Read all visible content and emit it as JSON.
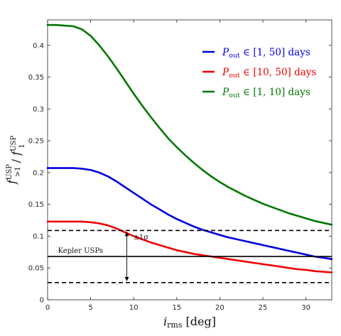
{
  "chart_data": {
    "type": "line",
    "xlabel_main": "i",
    "xlabel_sub": "rms",
    "xlabel_unit": " [deg]",
    "ylabel": "f>1USP / f1USP",
    "ylabel_parts": {
      "f1": "f",
      "sub1": ">1",
      "sup1": "USP",
      "slash": " / ",
      "f2": "f",
      "sub2": "1",
      "sup2": "USP"
    },
    "xlim": [
      0,
      33
    ],
    "ylim": [
      0,
      0.44
    ],
    "xticks": [
      0,
      5,
      10,
      15,
      20,
      25,
      30
    ],
    "xtick_labels": [
      "0",
      "5",
      "10",
      "15",
      "20",
      "25",
      "30"
    ],
    "yticks": [
      0,
      0.05,
      0.1,
      0.15,
      0.2,
      0.25,
      0.3,
      0.35,
      0.4
    ],
    "ytick_labels": [
      "0",
      "0.05",
      "0.1",
      "0.15",
      "0.2",
      "0.25",
      "0.3",
      "0.35",
      "0.4"
    ],
    "grid": false,
    "legend_position": "top-right",
    "x": [
      0,
      1,
      2,
      3,
      4,
      5,
      6,
      7,
      8,
      9,
      10,
      11,
      12,
      13,
      14,
      15,
      16,
      17,
      18,
      19,
      20,
      21,
      22,
      23,
      24,
      25,
      26,
      27,
      28,
      29,
      30,
      31,
      32,
      33
    ],
    "series": [
      {
        "name_main": "P",
        "name_sub": "out",
        "name_rest": " ∈ [1, 50] days",
        "color": "#0000dd",
        "values": [
          0.207,
          0.207,
          0.207,
          0.207,
          0.206,
          0.204,
          0.2,
          0.194,
          0.186,
          0.177,
          0.168,
          0.159,
          0.15,
          0.142,
          0.134,
          0.127,
          0.121,
          0.115,
          0.11,
          0.106,
          0.102,
          0.098,
          0.095,
          0.092,
          0.089,
          0.086,
          0.083,
          0.08,
          0.077,
          0.074,
          0.071,
          0.068,
          0.066,
          0.064
        ]
      },
      {
        "name_main": "P",
        "name_sub": "out",
        "name_rest": " ∈ [10, 50] days",
        "color": "#ee0000",
        "values": [
          0.123,
          0.123,
          0.123,
          0.123,
          0.123,
          0.122,
          0.12,
          0.117,
          0.112,
          0.106,
          0.1,
          0.095,
          0.09,
          0.086,
          0.082,
          0.078,
          0.075,
          0.072,
          0.07,
          0.068,
          0.066,
          0.064,
          0.062,
          0.06,
          0.058,
          0.056,
          0.054,
          0.052,
          0.05,
          0.048,
          0.047,
          0.045,
          0.044,
          0.043
        ]
      },
      {
        "name_main": "P",
        "name_sub": "out",
        "name_rest": " ∈ [1, 10] days",
        "color": "#007700",
        "values": [
          0.432,
          0.432,
          0.431,
          0.43,
          0.425,
          0.415,
          0.4,
          0.383,
          0.364,
          0.344,
          0.324,
          0.305,
          0.287,
          0.27,
          0.254,
          0.24,
          0.227,
          0.215,
          0.204,
          0.194,
          0.185,
          0.177,
          0.17,
          0.163,
          0.157,
          0.151,
          0.146,
          0.141,
          0.136,
          0.132,
          0.128,
          0.124,
          0.121,
          0.118
        ]
      }
    ],
    "reference_lines": {
      "mean": {
        "y": 0.068,
        "color": "#000000",
        "label": "Kepler USPs"
      },
      "upper": {
        "y": 0.109,
        "color": "#000000"
      },
      "lower": {
        "y": 0.027,
        "color": "#000000"
      }
    },
    "sigma_arrow": {
      "x": 9.2,
      "label": "±1σ"
    }
  }
}
